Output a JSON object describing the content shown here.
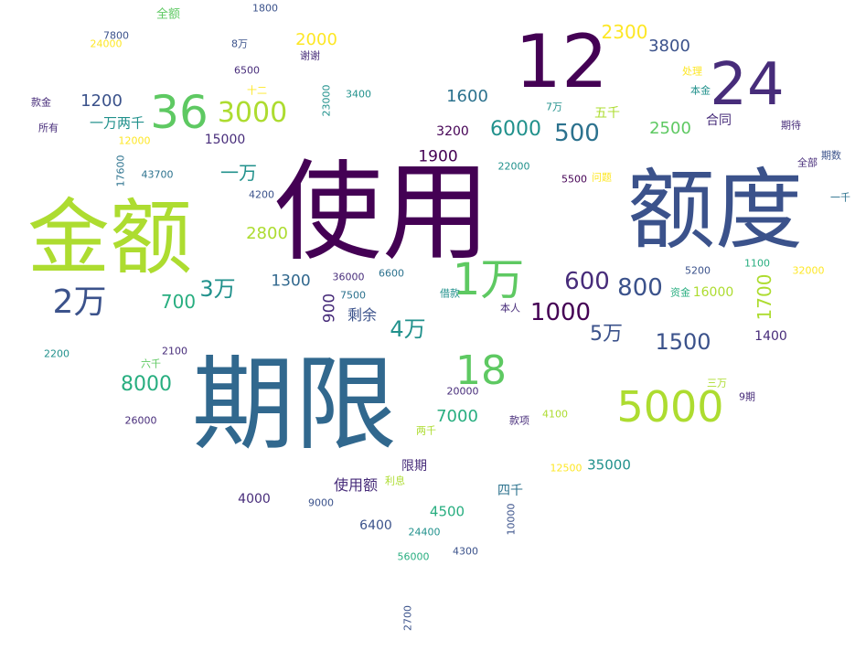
{
  "words": [
    {
      "text": "使用"
    },
    {
      "text": "额度"
    },
    {
      "text": "期限"
    },
    {
      "text": "金额"
    },
    {
      "text": "12"
    },
    {
      "text": "24"
    },
    {
      "text": "36"
    },
    {
      "text": "5000"
    },
    {
      "text": "1万"
    },
    {
      "text": "18"
    },
    {
      "text": "3000"
    },
    {
      "text": "2万"
    },
    {
      "text": "3万"
    },
    {
      "text": "4万"
    },
    {
      "text": "5万"
    },
    {
      "text": "1000"
    },
    {
      "text": "1500"
    },
    {
      "text": "800"
    },
    {
      "text": "600"
    },
    {
      "text": "500"
    },
    {
      "text": "8000"
    },
    {
      "text": "6000"
    },
    {
      "text": "2300"
    },
    {
      "text": "2000"
    },
    {
      "text": "3800"
    },
    {
      "text": "1200"
    },
    {
      "text": "1600"
    },
    {
      "text": "2500"
    },
    {
      "text": "一万"
    },
    {
      "text": "一万两千"
    },
    {
      "text": "1700"
    },
    {
      "text": "7000"
    },
    {
      "text": "35000"
    },
    {
      "text": "2800"
    },
    {
      "text": "700"
    },
    {
      "text": "1300"
    },
    {
      "text": "900"
    },
    {
      "text": "剩余"
    },
    {
      "text": "1900"
    },
    {
      "text": "3200"
    },
    {
      "text": "15000"
    },
    {
      "text": "五千"
    },
    {
      "text": "合同"
    },
    {
      "text": "限期"
    },
    {
      "text": "使用额"
    },
    {
      "text": "4500"
    },
    {
      "text": "四千"
    },
    {
      "text": "4000"
    },
    {
      "text": "6400"
    },
    {
      "text": "1400"
    },
    {
      "text": "16000"
    },
    {
      "text": "全额"
    },
    {
      "text": "1800"
    },
    {
      "text": "7800"
    },
    {
      "text": "24000"
    },
    {
      "text": "8万"
    },
    {
      "text": "谢谢"
    },
    {
      "text": "6500"
    },
    {
      "text": "十二"
    },
    {
      "text": "23000"
    },
    {
      "text": "3400"
    },
    {
      "text": "款金"
    },
    {
      "text": "所有"
    },
    {
      "text": "12000"
    },
    {
      "text": "17600"
    },
    {
      "text": "43700"
    },
    {
      "text": "4200"
    },
    {
      "text": "22000"
    },
    {
      "text": "5500"
    },
    {
      "text": "问题"
    },
    {
      "text": "处理"
    },
    {
      "text": "本金"
    },
    {
      "text": "7万"
    },
    {
      "text": "期待"
    },
    {
      "text": "期数"
    },
    {
      "text": "全部"
    },
    {
      "text": "一千"
    },
    {
      "text": "5200"
    },
    {
      "text": "1100"
    },
    {
      "text": "32000"
    },
    {
      "text": "资金"
    },
    {
      "text": "36000"
    },
    {
      "text": "6600"
    },
    {
      "text": "7500"
    },
    {
      "text": "借款"
    },
    {
      "text": "本人"
    },
    {
      "text": "2200"
    },
    {
      "text": "2100"
    },
    {
      "text": "六千"
    },
    {
      "text": "26000"
    },
    {
      "text": "20000"
    },
    {
      "text": "两千"
    },
    {
      "text": "款项"
    },
    {
      "text": "4100"
    },
    {
      "text": "三万"
    },
    {
      "text": "9期"
    },
    {
      "text": "12500"
    },
    {
      "text": "利息"
    },
    {
      "text": "9000"
    },
    {
      "text": "10000"
    },
    {
      "text": "24400"
    },
    {
      "text": "56000"
    },
    {
      "text": "4300"
    },
    {
      "text": "2700"
    }
  ]
}
